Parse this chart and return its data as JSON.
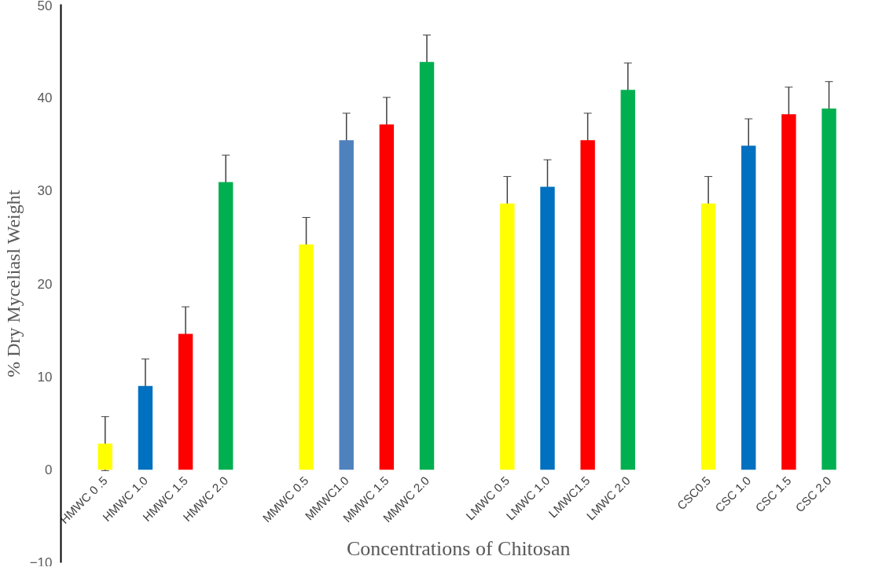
{
  "chart_data": {
    "type": "bar",
    "xlabel": "Concentrations of  Chitosan",
    "ylabel": "% Dry Myceliasl Weight",
    "categories": [
      "HMWC 0 .5",
      "HMWC 1.0",
      "HMWC 1.5",
      "HMWC 2.0",
      null,
      "MMWC 0.5",
      "MMWC1.0",
      "MMWC 1.5",
      "MMWC 2.0",
      null,
      "LMWC 0.5",
      "LMWC 1.0",
      "LMWC1.5",
      "LMWC 2.0",
      null,
      "CSC0.5",
      "CSC 1.0",
      "CSC 1.5",
      "CSC 2.0"
    ],
    "values": [
      2.8,
      9.0,
      14.6,
      30.9,
      null,
      24.2,
      35.4,
      37.1,
      43.8,
      null,
      28.6,
      30.4,
      35.4,
      40.8,
      null,
      28.6,
      34.8,
      38.2,
      38.8
    ],
    "colors": [
      "#ffff00",
      "#0070c0",
      "#ff0000",
      "#00b050",
      null,
      "#ffff00",
      "#4f81bd",
      "#ff0000",
      "#00b050",
      null,
      "#ffff00",
      "#0070c0",
      "#ff0000",
      "#00b050",
      null,
      "#ffff00",
      "#0070c0",
      "#ff0000",
      "#00b050"
    ],
    "errors": [
      2.9,
      2.9,
      2.9,
      2.9,
      null,
      2.9,
      2.9,
      2.9,
      2.9,
      null,
      2.9,
      2.9,
      2.9,
      2.9,
      null,
      2.9,
      2.9,
      2.9,
      2.9
    ],
    "ylim": [
      -10,
      50
    ],
    "yticks": [
      -10,
      0,
      10,
      20,
      30,
      40,
      50
    ],
    "grid": false
  }
}
